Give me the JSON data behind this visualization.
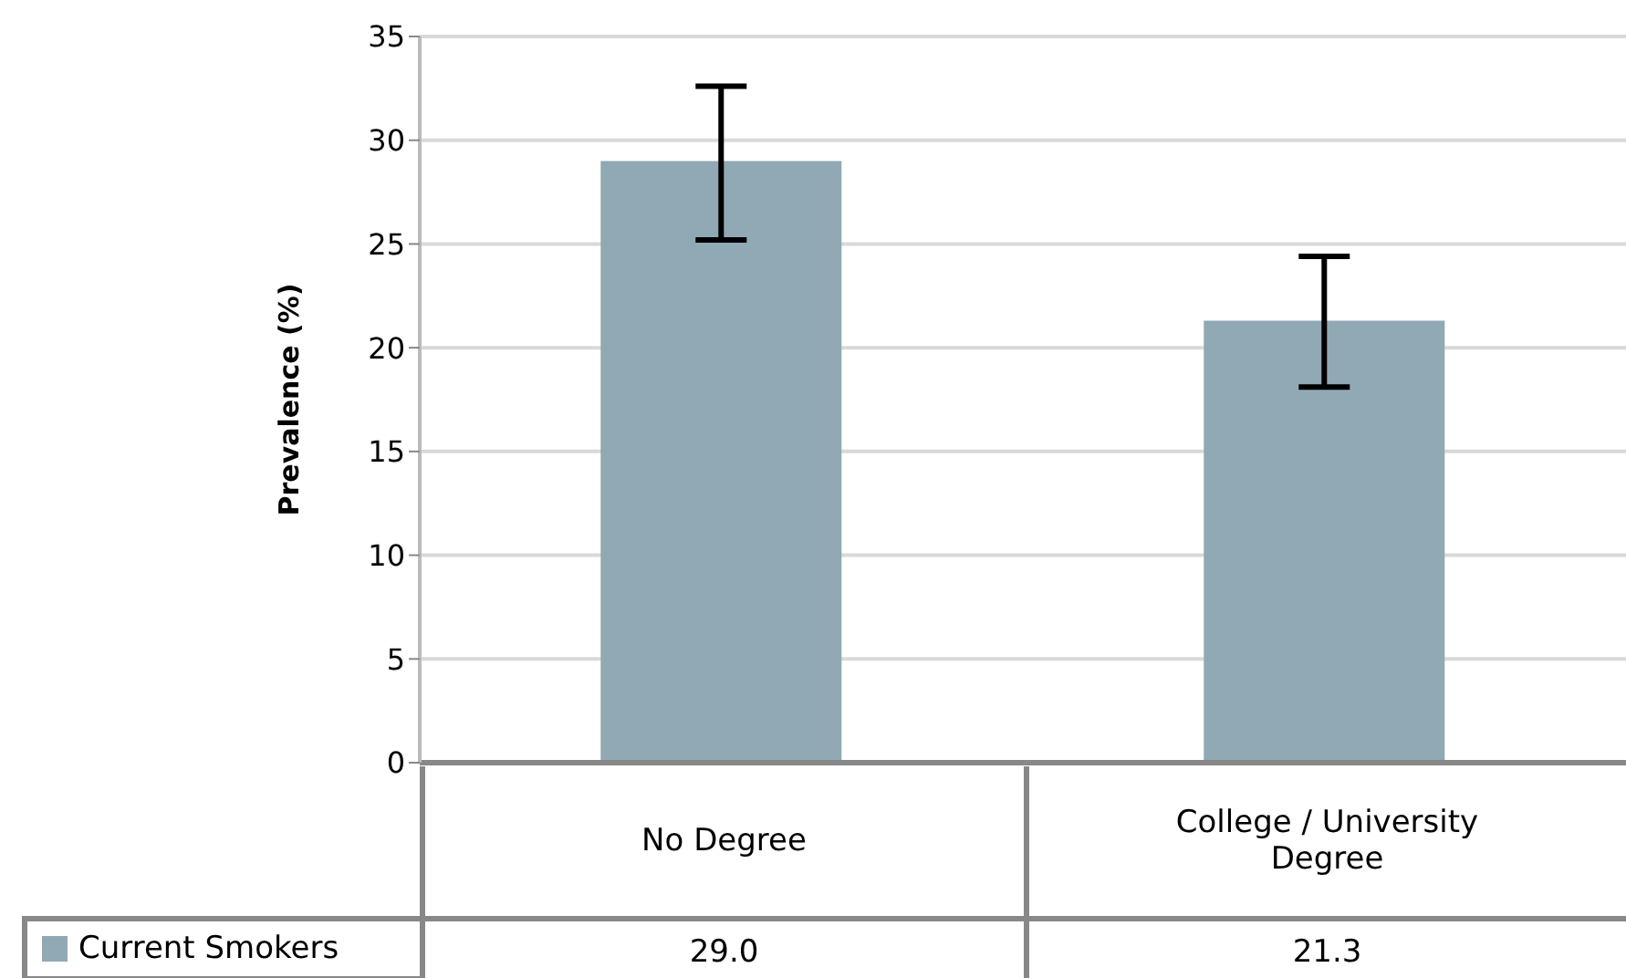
{
  "chart_data": {
    "type": "bar",
    "ylabel": "Prevalence (%)",
    "categories": [
      "No Degree",
      "College / University Degree"
    ],
    "series": [
      {
        "name": "Current Smokers",
        "color": "#91a9b4",
        "values": [
          29.0,
          21.3
        ],
        "value_labels": [
          "29.0",
          "21.3"
        ],
        "errors": [
          [
            25.2,
            32.6
          ],
          [
            18.1,
            24.4
          ]
        ]
      }
    ],
    "ylim": [
      0,
      35
    ],
    "yticks": [
      0,
      5,
      10,
      15,
      20,
      25,
      30,
      35
    ],
    "grid": "y",
    "legend": "bottom left"
  }
}
